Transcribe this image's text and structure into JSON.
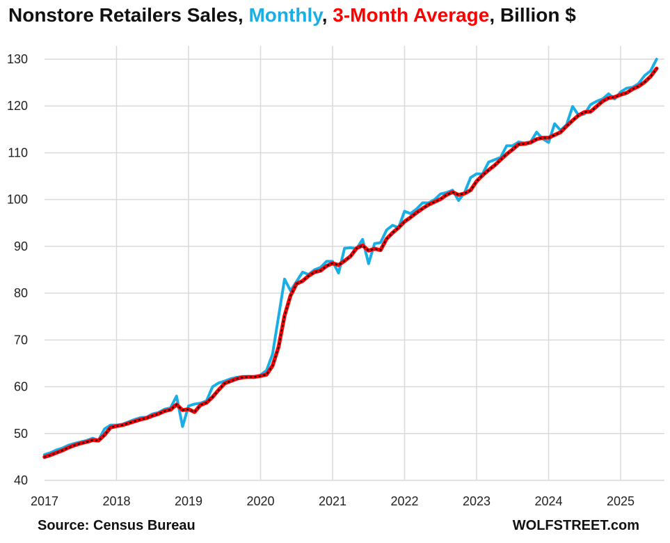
{
  "title": {
    "part1": "Nonstore Retailers Sales, ",
    "monthly": "Monthly",
    "sep1": ", ",
    "avg": "3-Month Average",
    "sep2": ", ",
    "unit": "Billion $"
  },
  "colors": {
    "monthly": "#1aaee6",
    "average": "#ff0000",
    "average_dots": "#111111",
    "grid": "#d9d9d9"
  },
  "footer": {
    "source": "Source: Census Bureau",
    "brand": "WOLFSTREET.com"
  },
  "chart_data": {
    "type": "line",
    "title": "Nonstore Retailers Sales, Monthly, 3-Month Average, Billion $",
    "xlabel": "",
    "ylabel": "",
    "ylim": [
      40,
      130
    ],
    "y_ticks": [
      40,
      50,
      60,
      70,
      80,
      90,
      100,
      110,
      120,
      130
    ],
    "x_ticks": [
      "2017",
      "2018",
      "2019",
      "2020",
      "2021",
      "2022",
      "2023",
      "2024",
      "2025"
    ],
    "x_start": "2017-01",
    "x_frequency": "monthly",
    "grid": {
      "vertical": true,
      "horizontal": true
    },
    "legend": "in title",
    "series": [
      {
        "name": "Monthly",
        "values": [
          45.5,
          45.9,
          46.5,
          46.9,
          47.5,
          47.9,
          48.2,
          48.5,
          49.0,
          48.6,
          51.0,
          51.8,
          51.8,
          52.0,
          52.5,
          53.0,
          53.4,
          53.5,
          54.2,
          54.5,
          55.2,
          55.5,
          58.0,
          51.5,
          55.9,
          56.3,
          56.5,
          57.0,
          60.0,
          60.8,
          61.2,
          61.7,
          62.0,
          62.2,
          62.2,
          62.1,
          62.5,
          63.5,
          67.0,
          75.0,
          83.0,
          80.5,
          82.5,
          84.5,
          84.0,
          85.0,
          85.5,
          86.8,
          86.8,
          84.3,
          89.6,
          89.7,
          89.5,
          91.5,
          86.3,
          90.6,
          90.8,
          93.5,
          94.5,
          94.0,
          97.5,
          97.0,
          98.0,
          99.3,
          99.3,
          100.0,
          101.2,
          101.5,
          102.0,
          99.8,
          101.5,
          104.7,
          105.5,
          105.5,
          108.0,
          108.5,
          109.0,
          111.5,
          111.5,
          112.3,
          112.1,
          112.3,
          114.4,
          113.0,
          112.2,
          116.2,
          114.8,
          116.0,
          119.9,
          118.0,
          118.3,
          120.3,
          121.0,
          121.5,
          122.6,
          121.5,
          123.0,
          123.8,
          124.0,
          124.8,
          126.5,
          127.5,
          130.0
        ]
      },
      {
        "name": "3-Month Average",
        "values": [
          45.0,
          45.4,
          45.9,
          46.4,
          47.0,
          47.5,
          47.9,
          48.2,
          48.6,
          48.5,
          49.7,
          51.3,
          51.6,
          51.8,
          52.2,
          52.6,
          53.0,
          53.3,
          53.8,
          54.2,
          54.8,
          55.1,
          56.2,
          55.0,
          55.2,
          54.6,
          56.1,
          56.6,
          57.8,
          59.3,
          60.7,
          61.2,
          61.7,
          62.0,
          62.1,
          62.1,
          62.3,
          62.6,
          64.5,
          68.5,
          75.2,
          79.5,
          82.0,
          82.6,
          83.7,
          84.5,
          84.8,
          85.8,
          86.4,
          86.0,
          86.9,
          87.9,
          89.6,
          90.2,
          89.1,
          89.5,
          89.2,
          91.6,
          92.9,
          94.0,
          95.3,
          96.2,
          97.2,
          98.1,
          98.9,
          99.5,
          100.1,
          101.0,
          101.6,
          101.0,
          101.3,
          102.0,
          103.9,
          105.2,
          106.3,
          107.3,
          108.5,
          109.7,
          110.7,
          111.8,
          111.9,
          112.2,
          112.9,
          113.2,
          113.2,
          113.8,
          114.4,
          115.7,
          116.9,
          118.0,
          118.7,
          118.8,
          119.9,
          121.0,
          121.7,
          121.9,
          122.4,
          122.8,
          123.6,
          124.2,
          125.1,
          126.3,
          128.0
        ]
      }
    ]
  }
}
